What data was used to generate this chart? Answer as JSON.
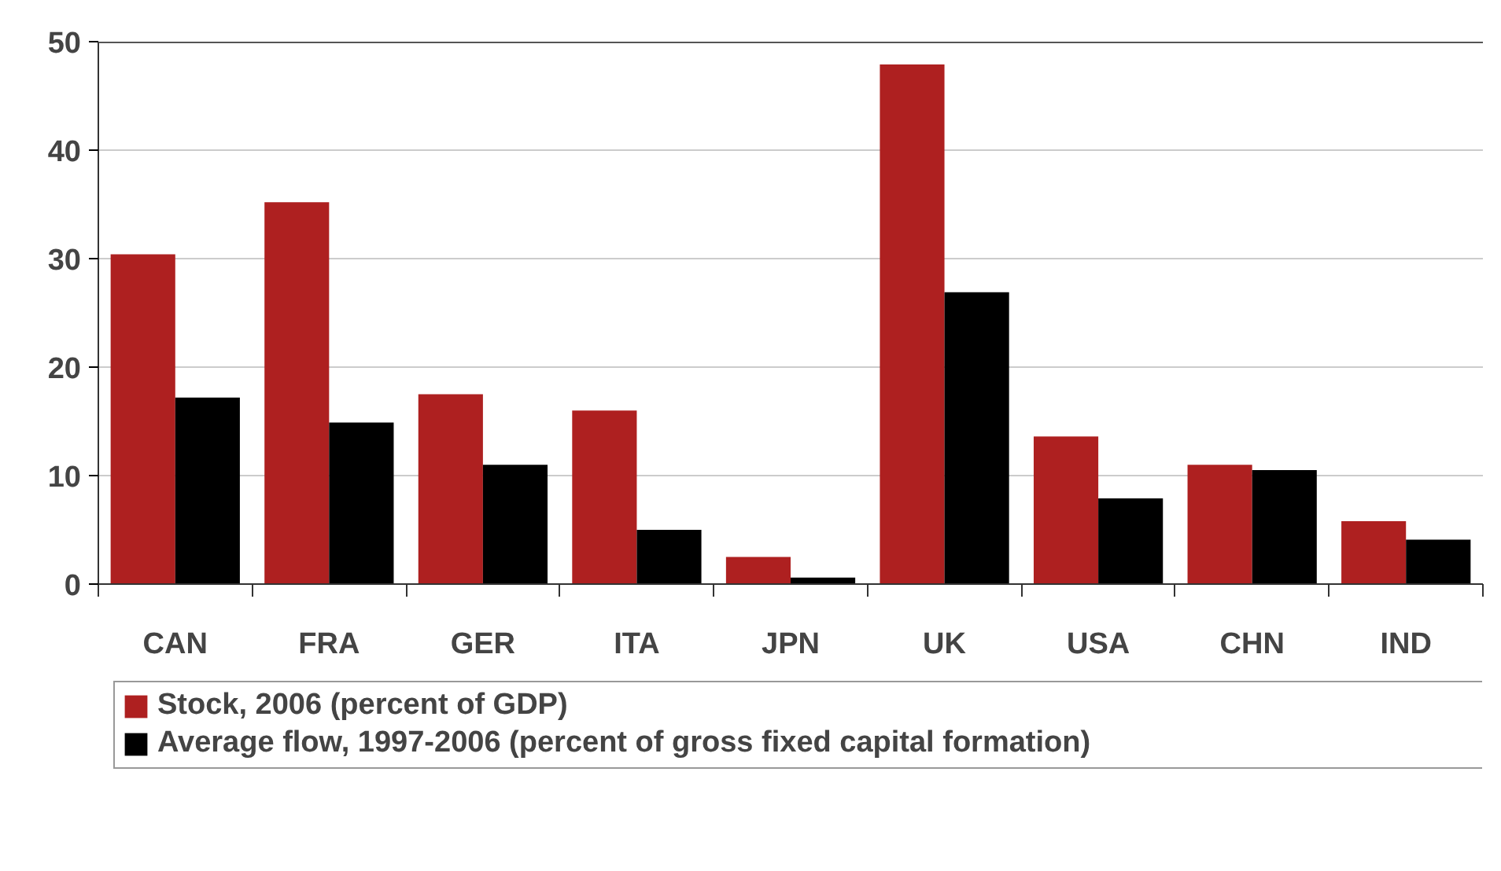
{
  "chart_data": {
    "type": "bar",
    "categories": [
      "CAN",
      "FRA",
      "GER",
      "ITA",
      "JPN",
      "UK",
      "USA",
      "CHN",
      "IND"
    ],
    "series": [
      {
        "name": "Stock, 2006 (percent of GDP)",
        "color": "#ae2020",
        "values": [
          30.4,
          35.2,
          17.5,
          16.0,
          2.5,
          47.9,
          13.6,
          11.0,
          5.8
        ]
      },
      {
        "name": "Average flow, 1997-2006 (percent of gross fixed capital formation)",
        "color": "#000000",
        "values": [
          17.2,
          14.9,
          11.0,
          5.0,
          0.6,
          26.9,
          7.9,
          10.5,
          4.1
        ]
      }
    ],
    "ylim": [
      0,
      50
    ],
    "yticks": [
      0,
      10,
      20,
      30,
      40,
      50
    ],
    "grid": "y",
    "legend": "bottom"
  }
}
